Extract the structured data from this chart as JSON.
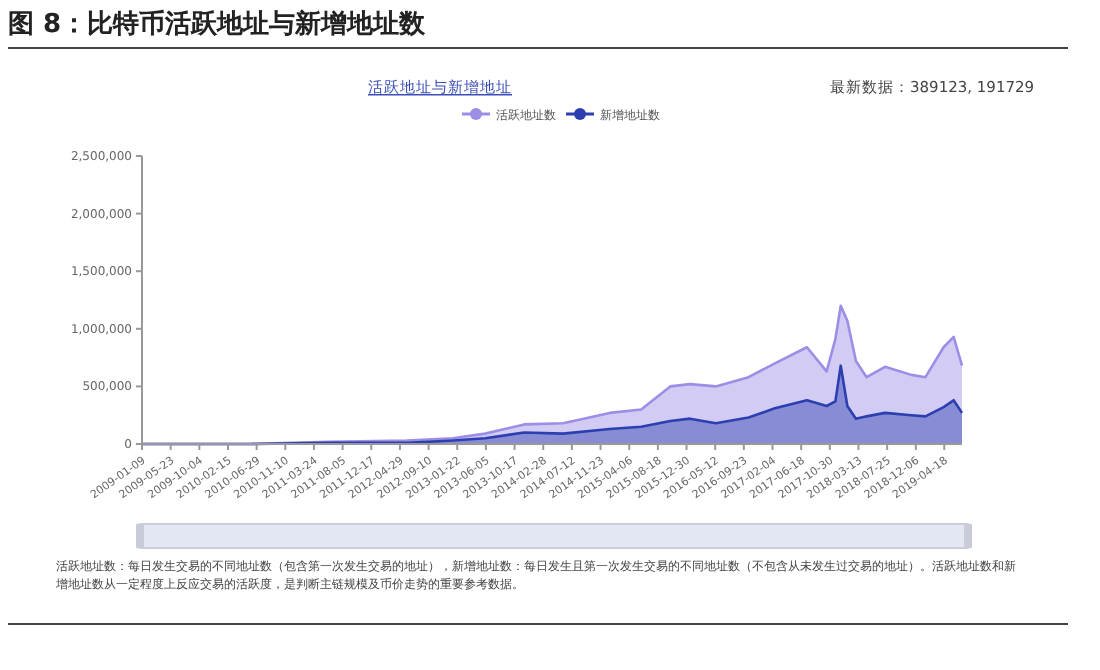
{
  "chart_data": {
    "type": "area",
    "title": "图 8：比特币活跃地址与新增地址数",
    "subtitle": "活跃地址与新增地址",
    "annotations": [
      "最新数据：389123, 191729",
      "活跃地址数：每日发生交易的不同地址数（包含第一次发生交易的地址），新增地址数：每日发生且第一次发生交易的不同地址数（不包含从未发生过交易的地址）。活跃地址数和新增地址数从一定程度上反应交易的活跃度，是判断主链规模及币价走势的重要参考数据。"
    ],
    "x": [
      "2009-01-09",
      "2010-06-01",
      "2011-06-01",
      "2012-06-01",
      "2013-01-01",
      "2013-06-01",
      "2013-12-01",
      "2014-06-01",
      "2015-01-05",
      "2015-06-01",
      "2015-10-15",
      "2016-01-15",
      "2016-05-15",
      "2016-10-15",
      "2017-02-15",
      "2017-07-15",
      "2017-10-15",
      "2017-11-25",
      "2017-12-20",
      "2018-01-20",
      "2018-03-01",
      "2018-04-20",
      "2018-07-15",
      "2018-11-15",
      "2019-01-20",
      "2019-04-15",
      "2019-06-01",
      "2019-07-10"
    ],
    "series": [
      {
        "name": "活跃地址数",
        "color": "#9c8ee6",
        "values": [
          0,
          0,
          20000,
          30000,
          50000,
          90000,
          170000,
          180000,
          270000,
          300000,
          500000,
          520000,
          500000,
          580000,
          700000,
          840000,
          630000,
          910000,
          1200000,
          1070000,
          720000,
          580000,
          670000,
          600000,
          580000,
          840000,
          930000,
          680000
        ]
      },
      {
        "name": "新增地址数",
        "color": "#2c3fb0",
        "values": [
          0,
          0,
          10000,
          10000,
          30000,
          50000,
          100000,
          90000,
          130000,
          150000,
          200000,
          220000,
          180000,
          230000,
          310000,
          380000,
          330000,
          370000,
          680000,
          330000,
          220000,
          240000,
          270000,
          250000,
          240000,
          320000,
          380000,
          270000
        ]
      }
    ],
    "xlim": [
      "2009-01-09",
      "2019-07-10"
    ],
    "xticks": [
      "2009-01-09",
      "2009-05-23",
      "2009-10-04",
      "2010-02-15",
      "2010-06-29",
      "2010-11-10",
      "2011-03-24",
      "2011-08-05",
      "2011-12-17",
      "2012-04-29",
      "2012-09-10",
      "2013-01-22",
      "2013-06-05",
      "2013-10-17",
      "2014-02-28",
      "2014-07-12",
      "2014-11-23",
      "2015-04-06",
      "2015-08-18",
      "2015-12-30",
      "2016-05-12",
      "2016-09-23",
      "2017-02-04",
      "2017-06-18",
      "2017-10-30",
      "2018-03-13",
      "2018-07-25",
      "2018-12-06",
      "2019-04-18"
    ],
    "ylim": [
      0,
      2500000
    ],
    "yticks": [
      {
        "value": 0,
        "label": "0"
      },
      {
        "value": 500000,
        "label": "500,000"
      },
      {
        "value": 1000000,
        "label": "1,000,000"
      },
      {
        "value": 1500000,
        "label": "1,500,000"
      },
      {
        "value": 2000000,
        "label": "2,000,000"
      },
      {
        "value": 2500000,
        "label": "2,500,000"
      }
    ],
    "grid": false,
    "legend": "top",
    "marker": "none"
  }
}
